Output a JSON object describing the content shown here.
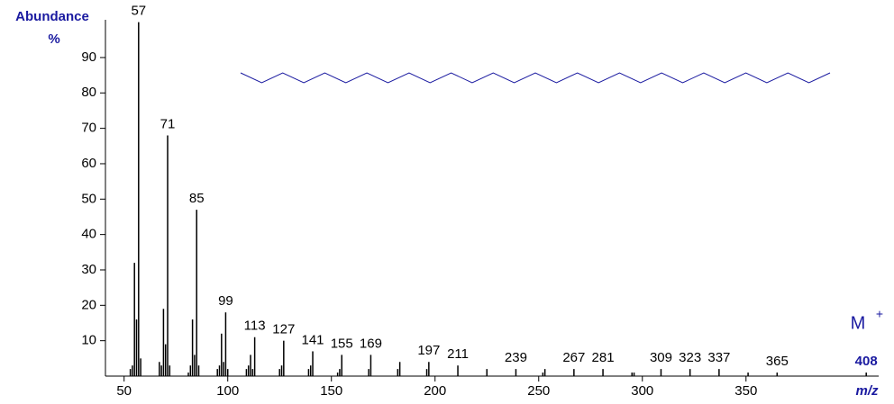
{
  "chart_data": {
    "type": "spectrum",
    "ylabel": [
      "Abundance",
      "%"
    ],
    "xlabel": "m/z",
    "molecular_ion_label": "M",
    "molecular_ion_charge": "+",
    "molecular_ion": 408,
    "xlim": [
      41,
      414
    ],
    "ylim": [
      0,
      100
    ],
    "xticks": [
      50,
      100,
      150,
      200,
      250,
      300,
      350
    ],
    "yticks": [
      10,
      20,
      30,
      40,
      50,
      60,
      70,
      80,
      90
    ],
    "color": "#000000",
    "x": [
      53,
      54,
      55,
      56,
      57,
      58,
      67,
      68,
      69,
      70,
      71,
      72,
      81,
      82,
      83,
      84,
      85,
      86,
      95,
      96,
      97,
      98,
      99,
      100,
      109,
      110,
      111,
      112,
      113,
      125,
      126,
      127,
      139,
      140,
      141,
      153,
      154,
      155,
      168,
      169,
      182,
      183,
      196,
      197,
      211,
      225,
      239,
      252,
      253,
      267,
      281,
      295,
      296,
      309,
      323,
      337,
      351,
      365,
      408
    ],
    "values": [
      2,
      3,
      32,
      16,
      100,
      5,
      4,
      3,
      19,
      9,
      68,
      3,
      1,
      3,
      16,
      6,
      47,
      3,
      2,
      3,
      12,
      4,
      18,
      2,
      2,
      3,
      6,
      2,
      11,
      2,
      3,
      10,
      2,
      3,
      7,
      1,
      2,
      6,
      2,
      6,
      2,
      4,
      2,
      4,
      3,
      2,
      2,
      1,
      2,
      2,
      2,
      1,
      1,
      2,
      2,
      2,
      1,
      1,
      1
    ],
    "labeled_peaks": [
      57,
      71,
      85,
      99,
      113,
      127,
      141,
      155,
      169,
      197,
      211,
      239,
      267,
      281,
      309,
      323,
      337,
      365
    ]
  }
}
